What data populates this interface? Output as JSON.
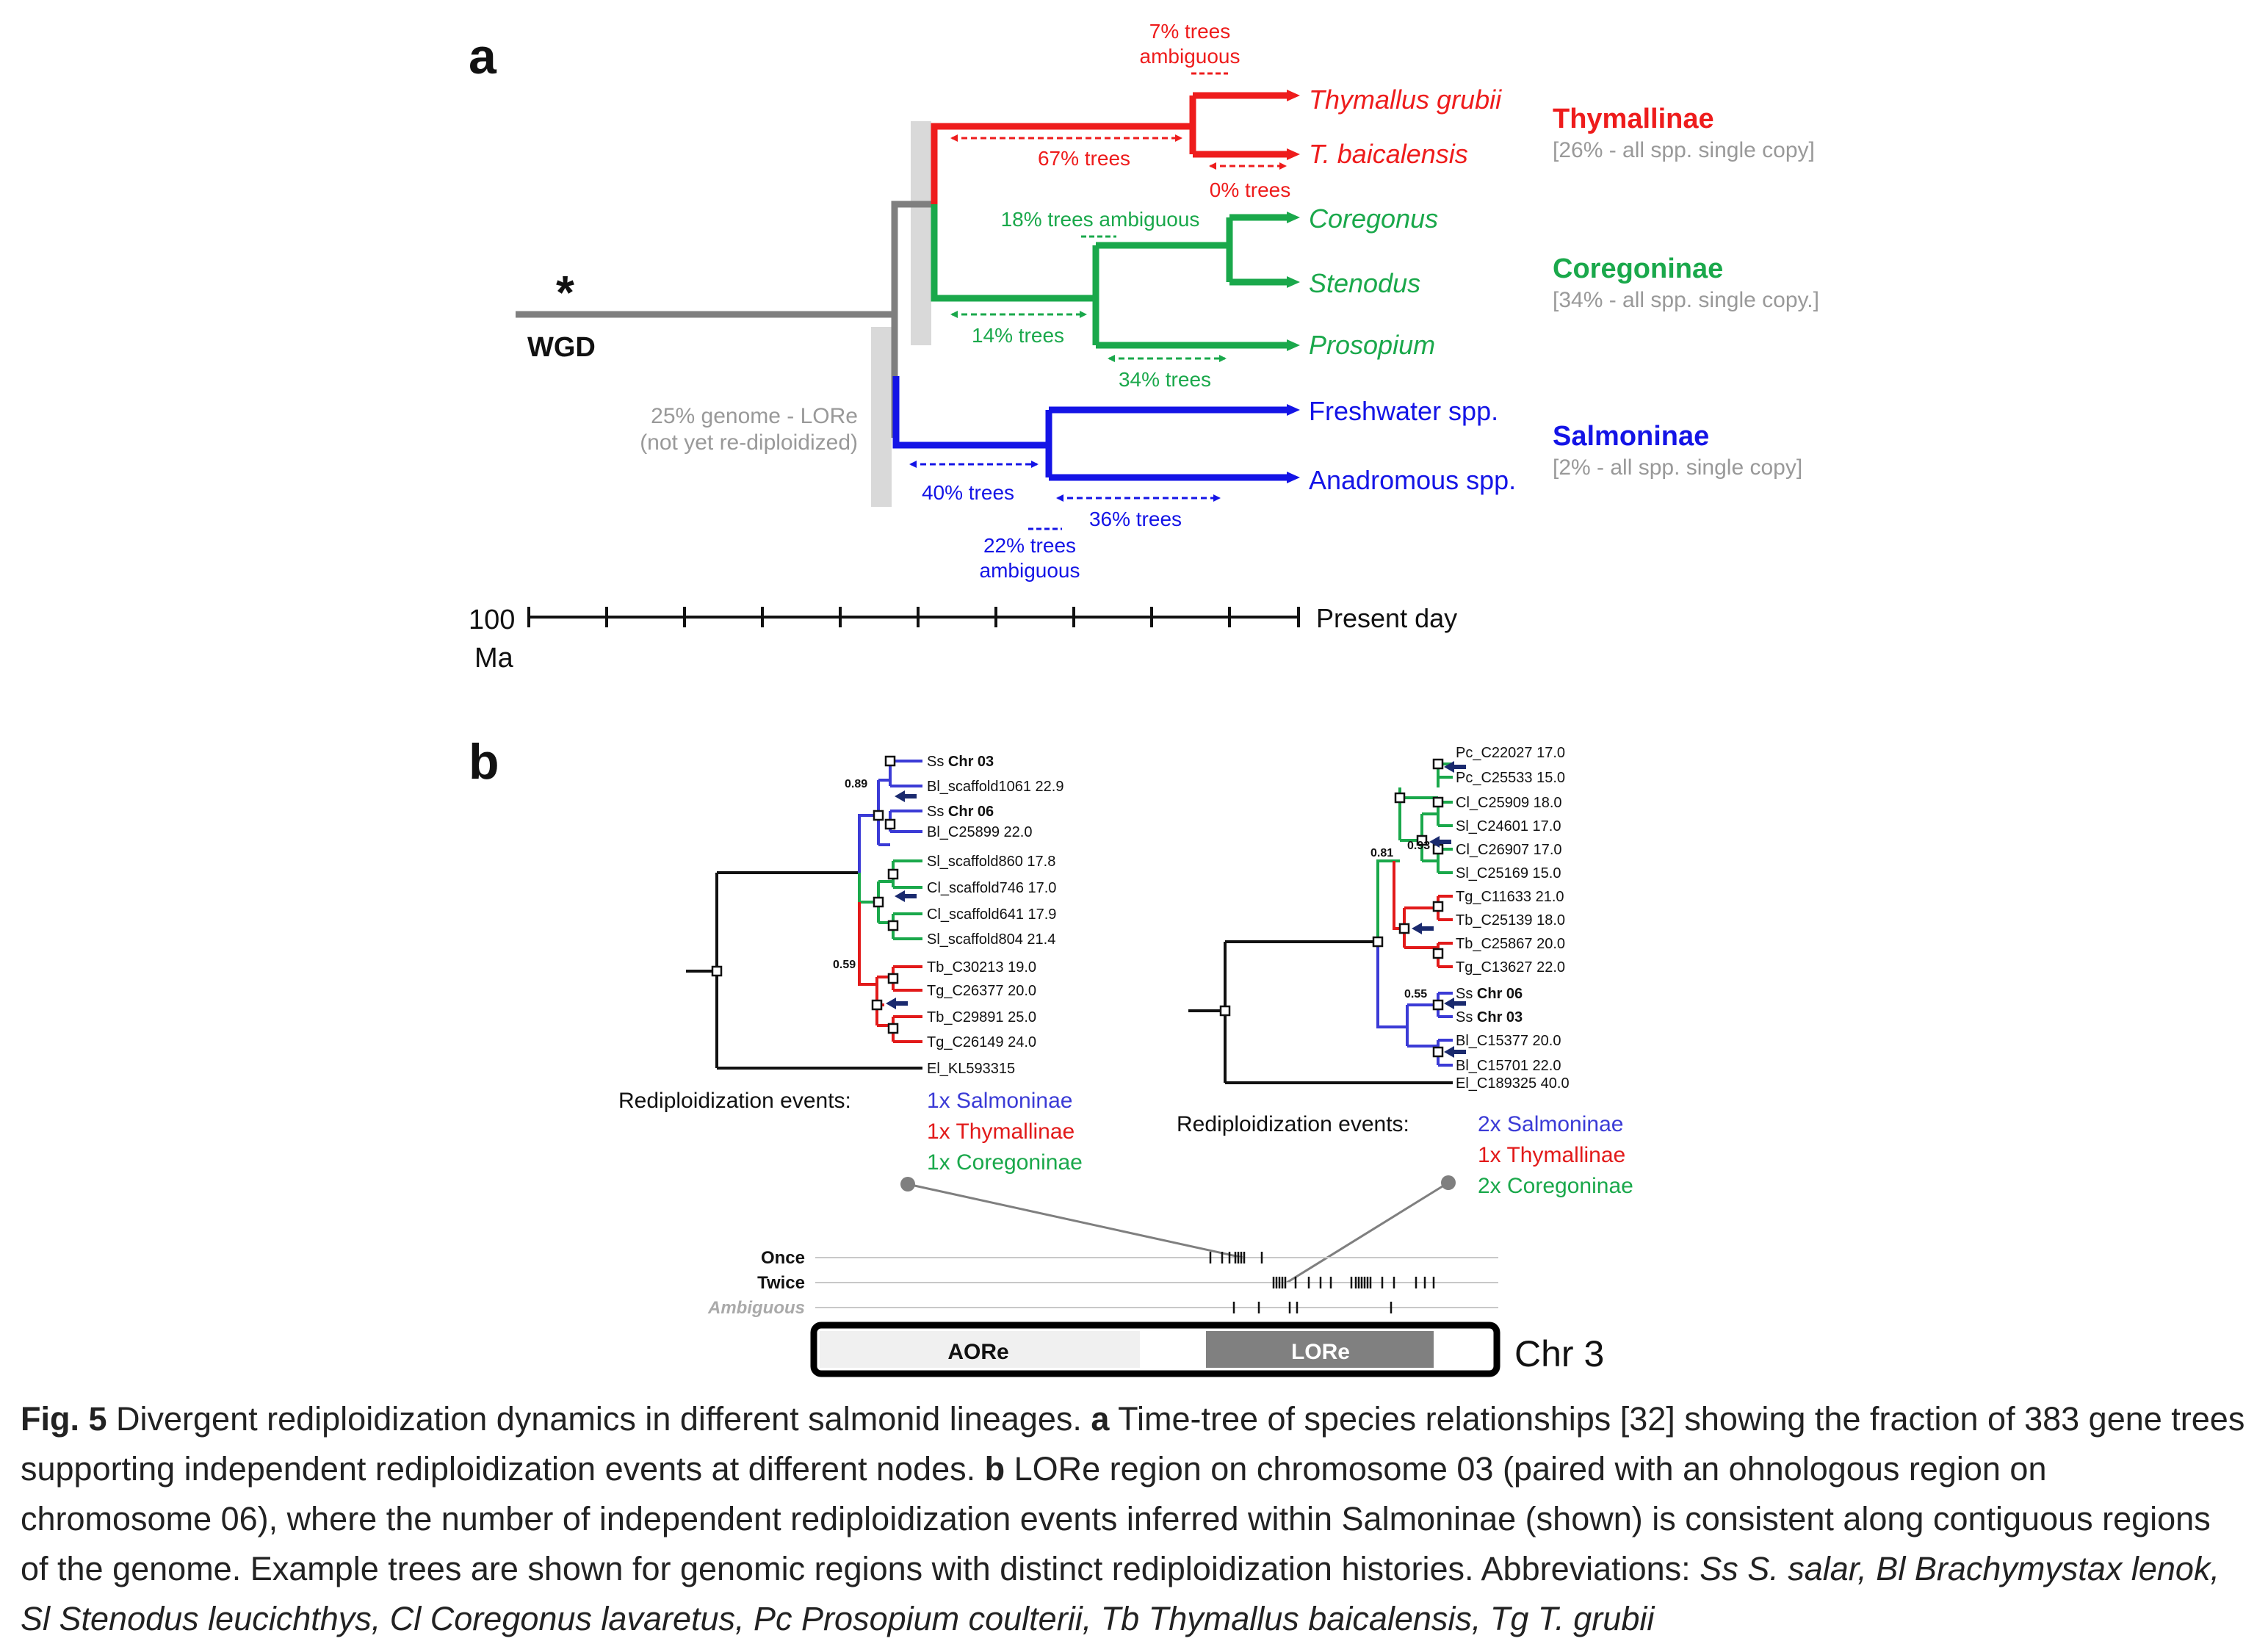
{
  "panel_a": {
    "label": "a",
    "wgd_label": "WGD",
    "asterisk": "*",
    "lore_note_line1": "25% genome - LORe",
    "lore_note_line2": "(not yet re-diploidized)",
    "top_ambiguous_line1": "7% trees",
    "top_ambiguous_line2": "ambiguous",
    "thym_67": "67% trees",
    "thym_0": "0% trees",
    "coreg_ambiguous": "18% trees ambiguous",
    "coreg_14": "14% trees",
    "coreg_34": "34% trees",
    "salm_40": "40% trees",
    "salm_36": "36% trees",
    "salm_ambiguous_line1": "22% trees",
    "salm_ambiguous_line2": "ambiguous",
    "tips": {
      "t1": "Thymallus grubii",
      "t2": "T. baicalensis",
      "c1": "Coregonus",
      "c2": "Stenodus",
      "c3": "Prosopium",
      "s1": "Freshwater spp.",
      "s2": "Anadromous spp."
    },
    "groups": {
      "thym": "Thymallinae",
      "thym_note": "[26% - all spp. single copy]",
      "coreg": "Coregoninae",
      "coreg_note": "[34% - all spp. single copy.]",
      "salm": "Salmoninae",
      "salm_note": "[2% - all spp. single copy]"
    },
    "axis": {
      "start": "100",
      "unit": "Ma",
      "end": "Present day"
    },
    "colors": {
      "thym": "#ee1c1c",
      "coreg": "#1aa84b",
      "salm": "#1414e6",
      "stem": "#7f7f7f"
    }
  },
  "panel_b": {
    "label": "b",
    "left_tree": {
      "labels": [
        {
          "pre": "Ss ",
          "bold": "Chr 03",
          "post": ""
        },
        {
          "pre": "Bl_scaffold1061  22.9",
          "bold": "",
          "post": ""
        },
        {
          "pre": "Ss ",
          "bold": "Chr 06",
          "post": ""
        },
        {
          "pre": "Bl_C25899  22.0",
          "bold": "",
          "post": ""
        },
        {
          "pre": "Sl_scaffold860  17.8",
          "bold": "",
          "post": ""
        },
        {
          "pre": "Cl_scaffold746  17.0",
          "bold": "",
          "post": ""
        },
        {
          "pre": "Cl_scaffold641  17.9",
          "bold": "",
          "post": ""
        },
        {
          "pre": "Sl_scaffold804  21.4",
          "bold": "",
          "post": ""
        },
        {
          "pre": "Tb_C30213  19.0",
          "bold": "",
          "post": ""
        },
        {
          "pre": "Tg_C26377  20.0",
          "bold": "",
          "post": ""
        },
        {
          "pre": "Tb_C29891  25.0",
          "bold": "",
          "post": ""
        },
        {
          "pre": "Tg_C26149  24.0",
          "bold": "",
          "post": ""
        },
        {
          "pre": "El_KL593315",
          "bold": "",
          "post": ""
        }
      ],
      "support_1": "0.89",
      "support_2": "0.59",
      "events_label": "Rediploidization events:",
      "events": [
        "1x Salmoninae",
        "1x Thymallinae",
        "1x Coregoninae"
      ]
    },
    "right_tree": {
      "labels": [
        {
          "pre": "Pc_C22027  17.0",
          "bold": ""
        },
        {
          "pre": "Pc_C25533  15.0",
          "bold": ""
        },
        {
          "pre": "Cl_C25909  18.0",
          "bold": ""
        },
        {
          "pre": "Sl_C24601  17.0",
          "bold": ""
        },
        {
          "pre": "Cl_C26907  17.0",
          "bold": ""
        },
        {
          "pre": "Sl_C25169  15.0",
          "bold": ""
        },
        {
          "pre": "Tg_C11633  21.0",
          "bold": ""
        },
        {
          "pre": "Tb_C25139  18.0",
          "bold": ""
        },
        {
          "pre": "Tb_C25867  20.0",
          "bold": ""
        },
        {
          "pre": "Tg_C13627  22.0",
          "bold": ""
        },
        {
          "pre": "Ss ",
          "bold": "Chr 06"
        },
        {
          "pre": "Ss ",
          "bold": "Chr 03"
        },
        {
          "pre": "Bl_C15377  20.0",
          "bold": ""
        },
        {
          "pre": "Bl_C15701  22.0",
          "bold": ""
        },
        {
          "pre": "El_C189325  40.0",
          "bold": ""
        }
      ],
      "support_1": "0.81",
      "support_2": "0.93",
      "support_3": "0.55",
      "events_label": "Rediploidization events:",
      "events": [
        "2x Salmoninae",
        "1x Thymallinae",
        "2x Coregoninae"
      ]
    },
    "track": {
      "once": "Once",
      "twice": "Twice",
      "ambiguous": "Ambiguous",
      "aore": "AORe",
      "lore": "LORe",
      "chr": "Chr 3"
    }
  },
  "caption": {
    "fig": "Fig. 5",
    "title": " Divergent rediploidization dynamics in different salmonid lineages. ",
    "a_label": "a",
    "a_text": " Time-tree of species relationships [32] showing the fraction of 383 gene trees supporting independent rediploidization events at different nodes. ",
    "b_label": "b",
    "b_text": " LORe region on chromosome 03 (paired with an ohnologous region on chromosome 06), where the number of independent rediploidization events inferred within Salmoninae (shown) is consistent along contiguous regions of the genome. Example trees are shown for genomic regions with distinct rediploidization histories. Abbreviations: ",
    "abbrev": "Ss S. salar, Bl Brachymystax lenok, Sl Stenodus leucichthys, Cl Coregonus lavaretus, Pc Prosopium coulterii, Tb Thymallus baicalensis, Tg T. grubii"
  }
}
